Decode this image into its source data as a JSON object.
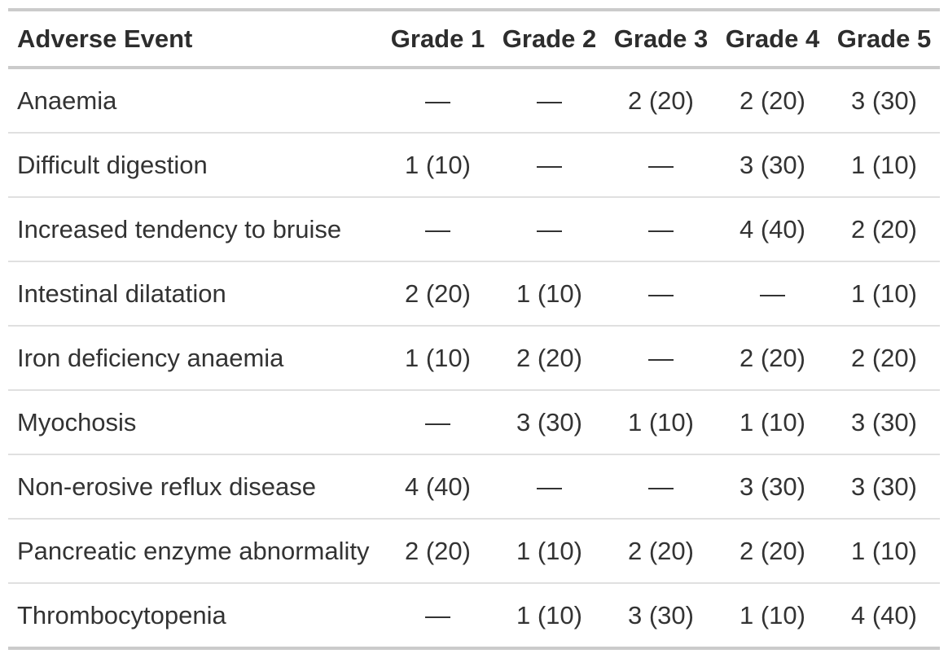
{
  "table": {
    "columns": [
      "Adverse Event",
      "Grade 1",
      "Grade 2",
      "Grade 3",
      "Grade 4",
      "Grade 5"
    ],
    "empty_marker": "—",
    "rows": [
      {
        "event": "Anaemia",
        "grades": [
          "—",
          "—",
          "2 (20)",
          "2 (20)",
          "3 (30)"
        ]
      },
      {
        "event": "Difficult digestion",
        "grades": [
          "1 (10)",
          "—",
          "—",
          "3 (30)",
          "1 (10)"
        ]
      },
      {
        "event": "Increased tendency to bruise",
        "grades": [
          "—",
          "—",
          "—",
          "4 (40)",
          "2 (20)"
        ]
      },
      {
        "event": "Intestinal dilatation",
        "grades": [
          "2 (20)",
          "1 (10)",
          "—",
          "—",
          "1 (10)"
        ]
      },
      {
        "event": "Iron deficiency anaemia",
        "grades": [
          "1 (10)",
          "2 (20)",
          "—",
          "2 (20)",
          "2 (20)"
        ]
      },
      {
        "event": "Myochosis",
        "grades": [
          "—",
          "3 (30)",
          "1 (10)",
          "1 (10)",
          "3 (30)"
        ]
      },
      {
        "event": "Non-erosive reflux disease",
        "grades": [
          "4 (40)",
          "—",
          "—",
          "3 (30)",
          "3 (30)"
        ]
      },
      {
        "event": "Pancreatic enzyme abnormality",
        "grades": [
          "2 (20)",
          "1 (10)",
          "2 (20)",
          "2 (20)",
          "1 (10)"
        ]
      },
      {
        "event": "Thrombocytopenia",
        "grades": [
          "—",
          "1 (10)",
          "3 (30)",
          "1 (10)",
          "4 (40)"
        ]
      }
    ]
  },
  "colors": {
    "border_strong": "#cbcbcb",
    "border_light": "#e0e0e0",
    "text": "#333333"
  }
}
